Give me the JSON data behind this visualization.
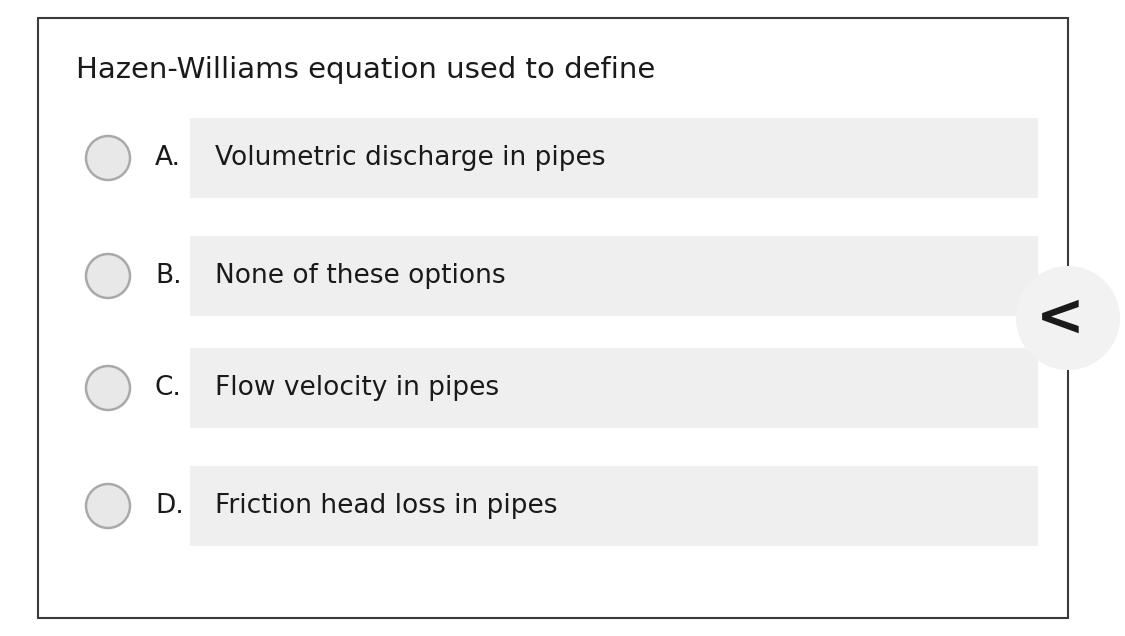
{
  "title": "Hazen-Williams equation used to define",
  "options": [
    {
      "label": "A.",
      "text": "Volumetric discharge in pipes"
    },
    {
      "label": "B.",
      "text": "None of these options"
    },
    {
      "label": "C.",
      "text": "Flow velocity in pipes"
    },
    {
      "label": "D.",
      "text": "Friction head loss in pipes"
    }
  ],
  "bg_color": "#ffffff",
  "card_bg": "#ffffff",
  "option_bg": "#efefef",
  "border_color": "#3a3a3a",
  "text_color": "#1a1a1a",
  "title_fontsize": 21,
  "option_fontsize": 19,
  "circle_color": "#aaaaaa",
  "circle_face": "#e8e8e8",
  "fig_width": 11.25,
  "fig_height": 6.36
}
